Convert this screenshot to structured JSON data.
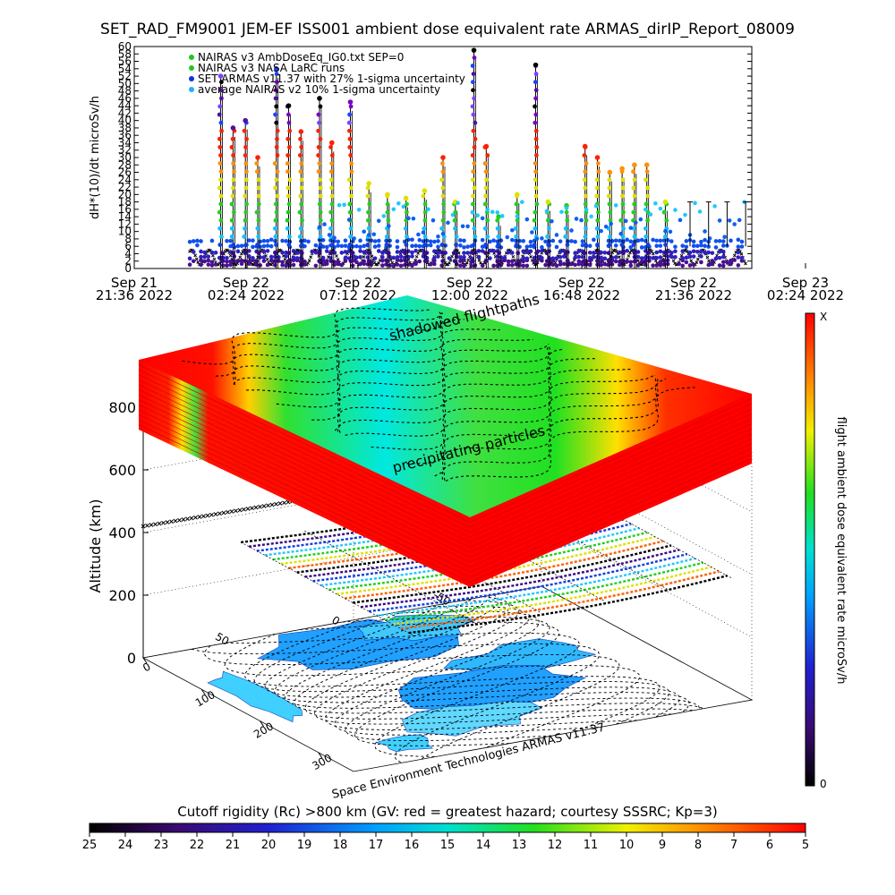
{
  "chart_data": [
    {
      "type": "scatter",
      "title": "SET_RAD_FM9001   JEM-EF ISS001 ambient dose equivalent rate ARMAS_dirIP_Report_08009",
      "ylabel": "dH*(10)/dt microSv/h",
      "ylim": [
        0,
        60
      ],
      "y_ticks": [
        0,
        2,
        4,
        6,
        8,
        10,
        12,
        14,
        16,
        18,
        20,
        22,
        24,
        26,
        28,
        30,
        32,
        34,
        36,
        38,
        40,
        42,
        44,
        46,
        48,
        50,
        52,
        54,
        56,
        58,
        60
      ],
      "x_ticks": [
        {
          "line1": "Sep 21",
          "line2": "21:36 2022"
        },
        {
          "line1": "Sep 22",
          "line2": "02:24 2022"
        },
        {
          "line1": "Sep 22",
          "line2": "07:12 2022"
        },
        {
          "line1": "Sep 22",
          "line2": "12:00 2022"
        },
        {
          "line1": "Sep 22",
          "line2": "16:48 2022"
        },
        {
          "line1": "Sep 22",
          "line2": "21:36 2022"
        },
        {
          "line1": "Sep 23",
          "line2": "02:24 2022"
        }
      ],
      "legend": [
        {
          "label": "NAIRAS v3 AmbDoseEq_IG0.txt SEP=0",
          "color": "#22c422"
        },
        {
          "label": "NAIRAS v3 NASA LaRC runs",
          "color": "#22c422"
        },
        {
          "label": "SET ARMAS v11.37 with 27% 1-sigma uncertainty",
          "color": "#1030e0"
        },
        {
          "label": "average NAIRAS v2 10% 1-sigma uncertainty",
          "color": "#20b0ff"
        }
      ],
      "legend_position": "top-left",
      "baseline_wave_range": [
        1,
        5
      ],
      "spikes": [
        {
          "t": 0.14,
          "y": 52
        },
        {
          "t": 0.16,
          "y": 38
        },
        {
          "t": 0.18,
          "y": 40
        },
        {
          "t": 0.2,
          "y": 30
        },
        {
          "t": 0.23,
          "y": 54
        },
        {
          "t": 0.25,
          "y": 44
        },
        {
          "t": 0.27,
          "y": 37
        },
        {
          "t": 0.3,
          "y": 46
        },
        {
          "t": 0.32,
          "y": 34
        },
        {
          "t": 0.35,
          "y": 45
        },
        {
          "t": 0.38,
          "y": 23
        },
        {
          "t": 0.41,
          "y": 20
        },
        {
          "t": 0.44,
          "y": 19
        },
        {
          "t": 0.47,
          "y": 21
        },
        {
          "t": 0.5,
          "y": 30
        },
        {
          "t": 0.52,
          "y": 18
        },
        {
          "t": 0.55,
          "y": 59
        },
        {
          "t": 0.57,
          "y": 33
        },
        {
          "t": 0.59,
          "y": 14
        },
        {
          "t": 0.62,
          "y": 20
        },
        {
          "t": 0.65,
          "y": 55
        },
        {
          "t": 0.67,
          "y": 18
        },
        {
          "t": 0.7,
          "y": 17
        },
        {
          "t": 0.73,
          "y": 33
        },
        {
          "t": 0.75,
          "y": 30
        },
        {
          "t": 0.77,
          "y": 26
        },
        {
          "t": 0.79,
          "y": 27
        },
        {
          "t": 0.81,
          "y": 28
        },
        {
          "t": 0.83,
          "y": 28
        },
        {
          "t": 0.86,
          "y": 18
        }
      ]
    },
    {
      "type": "heatmap",
      "zlabel": "Altitude (km)",
      "z_ticks": [
        0,
        200,
        400,
        600,
        800
      ],
      "lon_ticks": [
        0,
        100,
        200,
        300
      ],
      "lat_ticks": [
        -50,
        0,
        50
      ],
      "annotations": [
        "shadowed flightpaths",
        "precipitating particles"
      ],
      "credit": "Space Environment Technologies ARMAS v11.37",
      "colorbar": {
        "label": "flight ambient dose equivalent rate microSv/h",
        "top_label": "X",
        "bottom_label": "0"
      },
      "bottom_colorbar": {
        "label": "Cutoff rigidity (Rc) >800 km (GV: red = greatest hazard; courtesy SSSRC; Kp=3)",
        "ticks": [
          25,
          24,
          23,
          22,
          21,
          20,
          19,
          18,
          17,
          16,
          15,
          14,
          13,
          12,
          11,
          10,
          9,
          8,
          7,
          6,
          5
        ]
      }
    }
  ]
}
